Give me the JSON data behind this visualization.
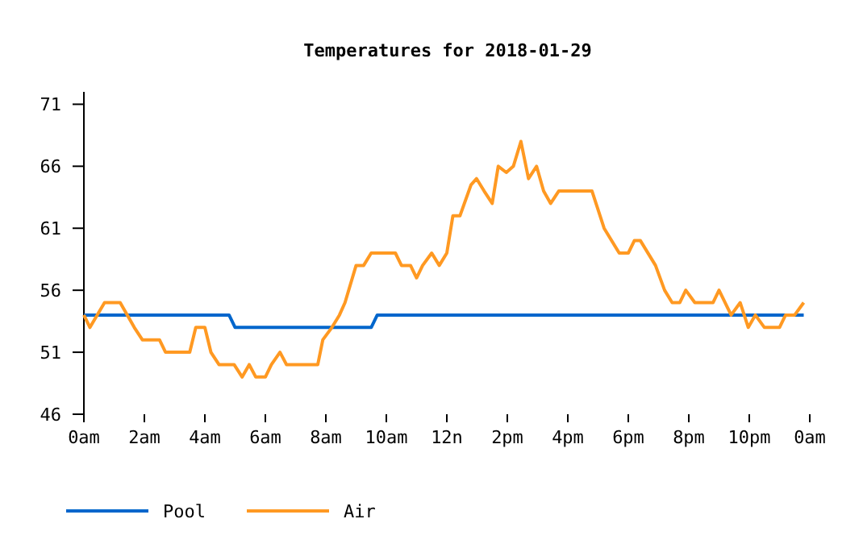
{
  "chart_data": {
    "type": "line",
    "title": "Temperatures for 2018-01-29",
    "xlim": [
      "2018-01-29T00:00",
      "2018-01-30T00:00"
    ],
    "xticks": [
      {
        "value": "2018-01-29T00:00",
        "label": "0am"
      },
      {
        "value": "2018-01-29T02:00",
        "label": "2am"
      },
      {
        "value": "2018-01-29T04:00",
        "label": "4am"
      },
      {
        "value": "2018-01-29T06:00",
        "label": "6am"
      },
      {
        "value": "2018-01-29T08:00",
        "label": "8am"
      },
      {
        "value": "2018-01-29T10:00",
        "label": "10am"
      },
      {
        "value": "2018-01-29T12:00",
        "label": "12n"
      },
      {
        "value": "2018-01-29T14:00",
        "label": "2pm"
      },
      {
        "value": "2018-01-29T16:00",
        "label": "4pm"
      },
      {
        "value": "2018-01-29T18:00",
        "label": "6pm"
      },
      {
        "value": "2018-01-29T20:00",
        "label": "8pm"
      },
      {
        "value": "2018-01-29T22:00",
        "label": "10pm"
      },
      {
        "value": "2018-01-30T00:00",
        "label": "0am"
      }
    ],
    "ylim": [
      46,
      72
    ],
    "yticks": [
      46,
      51,
      56,
      61,
      66,
      71
    ],
    "grid": false,
    "legend": "bottom left",
    "marker": "none",
    "line_style": "solid",
    "series": [
      {
        "name": "Pool",
        "color": "#0066cc",
        "x": [
          "2018-01-29T00:00",
          "2018-01-29T04:48",
          "2018-01-29T05:00",
          "2018-01-29T09:30",
          "2018-01-29T09:42",
          "2018-01-29T23:48"
        ],
        "values": [
          54,
          54,
          53,
          53,
          54,
          54
        ]
      },
      {
        "name": "Air",
        "color": "#ff9922",
        "x": [
          "2018-01-29T00:00",
          "2018-01-29T00:12",
          "2018-01-29T00:41",
          "2018-01-29T01:12",
          "2018-01-29T01:40",
          "2018-01-29T01:56",
          "2018-01-29T02:30",
          "2018-01-29T02:42",
          "2018-01-29T03:30",
          "2018-01-29T03:42",
          "2018-01-29T04:00",
          "2018-01-29T04:12",
          "2018-01-29T04:28",
          "2018-01-29T04:58",
          "2018-01-29T05:14",
          "2018-01-29T05:28",
          "2018-01-29T05:41",
          "2018-01-29T06:00",
          "2018-01-29T06:12",
          "2018-01-29T06:29",
          "2018-01-29T06:42",
          "2018-01-29T07:44",
          "2018-01-29T07:54",
          "2018-01-29T08:12",
          "2018-01-29T08:27",
          "2018-01-29T08:38",
          "2018-01-29T09:00",
          "2018-01-29T09:15",
          "2018-01-29T09:30",
          "2018-01-29T10:18",
          "2018-01-29T10:30",
          "2018-01-29T10:48",
          "2018-01-29T11:00",
          "2018-01-29T11:12",
          "2018-01-29T11:30",
          "2018-01-29T11:45",
          "2018-01-29T12:00",
          "2018-01-29T12:12",
          "2018-01-29T12:26",
          "2018-01-29T12:48",
          "2018-01-29T12:59",
          "2018-01-29T13:14",
          "2018-01-29T13:30",
          "2018-01-29T13:42",
          "2018-01-29T13:58",
          "2018-01-29T14:12",
          "2018-01-29T14:27",
          "2018-01-29T14:42",
          "2018-01-29T14:58",
          "2018-01-29T15:12",
          "2018-01-29T15:26",
          "2018-01-29T15:42",
          "2018-01-29T16:48",
          "2018-01-29T17:12",
          "2018-01-29T17:42",
          "2018-01-29T18:00",
          "2018-01-29T18:12",
          "2018-01-29T18:24",
          "2018-01-29T18:54",
          "2018-01-29T19:12",
          "2018-01-29T19:27",
          "2018-01-29T19:42",
          "2018-01-29T19:54",
          "2018-01-29T20:12",
          "2018-01-29T20:48",
          "2018-01-29T21:00",
          "2018-01-29T21:24",
          "2018-01-29T21:42",
          "2018-01-29T21:58",
          "2018-01-29T22:12",
          "2018-01-29T22:30",
          "2018-01-29T23:00",
          "2018-01-29T23:12",
          "2018-01-29T23:30",
          "2018-01-29T23:48"
        ],
        "values": [
          54,
          53,
          55,
          55,
          53,
          52,
          52,
          51,
          51,
          53,
          53,
          51,
          50,
          50,
          49,
          50,
          49,
          49,
          50,
          51,
          50,
          50,
          52,
          53,
          54,
          55,
          58,
          58,
          59,
          59,
          58,
          58,
          57,
          58,
          59,
          58,
          59,
          62,
          62,
          64.5,
          65,
          64,
          63,
          66,
          65.5,
          66,
          68,
          65,
          66,
          64,
          63,
          64,
          64,
          61,
          59,
          59,
          60,
          60,
          58,
          56,
          55,
          55,
          56,
          55,
          55,
          56,
          54,
          55,
          53,
          54,
          53,
          53,
          54,
          54,
          55
        ]
      }
    ]
  }
}
